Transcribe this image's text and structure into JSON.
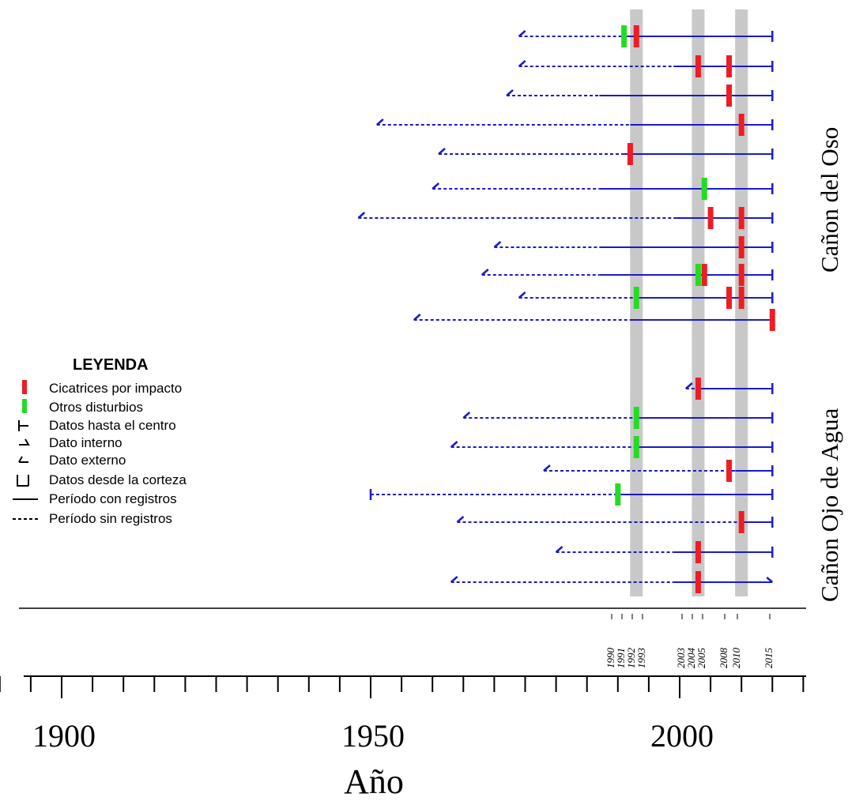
{
  "chart_data": {
    "type": "timeline",
    "xlabel": "Año",
    "xlim": [
      1888,
      2021
    ],
    "major_ticks": [
      1900,
      1950,
      2000
    ],
    "minor_tick_step": 5,
    "highlight_years": [
      1993,
      2003,
      2010
    ],
    "event_years": [
      {
        "label": "1990"
      },
      {
        "label": "1991"
      },
      {
        "label": "1992"
      },
      {
        "label": "1993"
      },
      {
        "label": "2003"
      },
      {
        "label": "2004"
      },
      {
        "label": "2005"
      },
      {
        "label": "2008"
      },
      {
        "label": "2010"
      },
      {
        "label": "2015"
      }
    ],
    "sites": [
      {
        "name": "Cañon del Oso"
      },
      {
        "name": "Cañon Ojo de Agua"
      }
    ],
    "legend": {
      "title": "LEYENDA",
      "items": [
        {
          "label": "Cicatrices por impacto",
          "color": "#ee1c24",
          "symbol": "red-bar"
        },
        {
          "label": "Otros disturbios",
          "color": "#22dd22",
          "symbol": "green-bar"
        },
        {
          "label": "Datos hasta el centro",
          "symbol": "pith-tick"
        },
        {
          "label": "Dato interno",
          "symbol": "inner-date"
        },
        {
          "label": "Dato externo",
          "symbol": "outer-date"
        },
        {
          "label": "Datos desde la corteza",
          "symbol": "bark-tick"
        },
        {
          "label": "Período con registros",
          "symbol": "solid-line"
        },
        {
          "label": "Período sin registros",
          "symbol": "dashed-line"
        }
      ]
    },
    "colors": {
      "line": "#1a1acc",
      "impact": "#ee1c24",
      "other": "#22dd22",
      "band": "#c8c8c8"
    },
    "series": [
      {
        "site": 0,
        "start": 1974,
        "recorder_start": 1991,
        "end": 2015,
        "start_type": "inner",
        "end_type": "bark",
        "impact": [
          1993
        ],
        "other": [
          1991
        ]
      },
      {
        "site": 0,
        "start": 1974,
        "recorder_start": 1999,
        "end": 2015,
        "start_type": "inner",
        "end_type": "bark",
        "impact": [
          2003,
          2008
        ],
        "other": []
      },
      {
        "site": 0,
        "start": 1972,
        "recorder_start": 1987,
        "end": 2015,
        "start_type": "inner",
        "end_type": "bark",
        "impact": [
          2008
        ],
        "other": []
      },
      {
        "site": 0,
        "start": 1951,
        "recorder_start": 1992,
        "end": 2015,
        "start_type": "inner",
        "end_type": "bark",
        "impact": [
          2010
        ],
        "other": []
      },
      {
        "site": 0,
        "start": 1961,
        "recorder_start": 1991,
        "end": 2015,
        "start_type": "inner",
        "end_type": "bark",
        "impact": [
          1992
        ],
        "other": []
      },
      {
        "site": 0,
        "start": 1960,
        "recorder_start": 1987,
        "end": 2015,
        "start_type": "inner",
        "end_type": "bark",
        "impact": [],
        "other": [
          2004
        ]
      },
      {
        "site": 0,
        "start": 1948,
        "recorder_start": 1999,
        "end": 2015,
        "start_type": "inner",
        "end_type": "bark",
        "impact": [
          2005,
          2010
        ],
        "other": []
      },
      {
        "site": 0,
        "start": 1970,
        "recorder_start": 1987,
        "end": 2015,
        "start_type": "inner",
        "end_type": "bark",
        "impact": [
          2010
        ],
        "other": []
      },
      {
        "site": 0,
        "start": 1968,
        "recorder_start": 1987,
        "end": 2015,
        "start_type": "inner",
        "end_type": "bark",
        "impact": [
          2004,
          2010
        ],
        "other": [
          2003
        ]
      },
      {
        "site": 0,
        "start": 1974,
        "recorder_start": 1993,
        "end": 2015,
        "start_type": "inner",
        "end_type": "bark",
        "impact": [
          2008,
          2010
        ],
        "other": [
          1993
        ]
      },
      {
        "site": 0,
        "start": 1957,
        "recorder_start": 1992,
        "end": 2015,
        "start_type": "inner",
        "end_type": "bark",
        "impact": [
          2015
        ],
        "other": []
      },
      {
        "site": 1,
        "start": 2001,
        "recorder_start": 2003,
        "end": 2015,
        "start_type": "inner",
        "end_type": "bark",
        "impact": [
          2003
        ],
        "other": []
      },
      {
        "site": 1,
        "start": 1965,
        "recorder_start": 1993,
        "end": 2015,
        "start_type": "inner",
        "end_type": "bark",
        "impact": [],
        "other": [
          1993
        ]
      },
      {
        "site": 1,
        "start": 1963,
        "recorder_start": 1993,
        "end": 2015,
        "start_type": "inner",
        "end_type": "bark",
        "impact": [],
        "other": [
          1993
        ]
      },
      {
        "site": 1,
        "start": 1978,
        "recorder_start": 2009,
        "end": 2015,
        "start_type": "inner",
        "end_type": "bark",
        "impact": [
          2008
        ],
        "other": []
      },
      {
        "site": 1,
        "start": 1950,
        "recorder_start": 1990,
        "end": 2015,
        "start_type": "pith",
        "end_type": "bark",
        "impact": [],
        "other": [
          1990
        ]
      },
      {
        "site": 1,
        "start": 1964,
        "recorder_start": 2010,
        "end": 2015,
        "start_type": "inner",
        "end_type": "bark",
        "impact": [
          2010
        ],
        "other": []
      },
      {
        "site": 1,
        "start": 1980,
        "recorder_start": 1999,
        "end": 2015,
        "start_type": "inner",
        "end_type": "bark",
        "impact": [
          2003
        ],
        "other": []
      },
      {
        "site": 1,
        "start": 1963,
        "recorder_start": 1999,
        "end": 2015,
        "start_type": "inner",
        "end_type": "outer",
        "impact": [
          2003
        ],
        "other": []
      }
    ]
  }
}
